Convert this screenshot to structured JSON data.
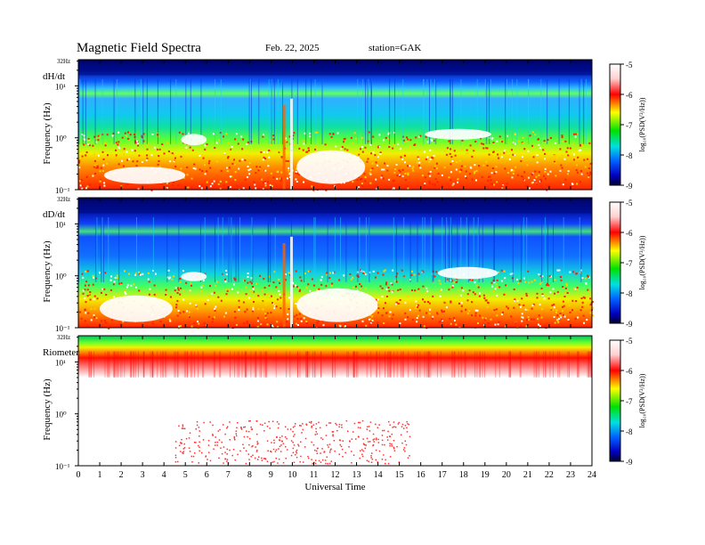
{
  "header": {
    "title": "Magnetic  Field  Spectra",
    "date": "Feb. 22, 2025",
    "station": "station=GAK"
  },
  "chart_data": [
    {
      "type": "heatmap",
      "panel_label": "dH/dt",
      "ylabel": "Frequency  (Hz)",
      "y_top_label": "32Hz",
      "y_ticks": [
        "10¹",
        "10⁰",
        "10⁻¹"
      ],
      "x_range": [
        0,
        24
      ],
      "y_range_hz": [
        0.1,
        32
      ],
      "y_scale": "log",
      "colorbar": {
        "label": "log₁₀(PSD(V²/Hz))",
        "range": [
          -9,
          -5
        ],
        "ticks": [
          "-5",
          "-6",
          "-7",
          "-8",
          "-9"
        ]
      }
    },
    {
      "type": "heatmap",
      "panel_label": "dD/dt",
      "ylabel": "Frequency  (Hz)",
      "y_top_label": "32Hz",
      "y_ticks": [
        "10¹",
        "10⁰",
        "10⁻¹"
      ],
      "x_range": [
        0,
        24
      ],
      "y_range_hz": [
        0.1,
        32
      ],
      "y_scale": "log",
      "colorbar": {
        "label": "log₁₀(PSD(V²/Hz))",
        "range": [
          -9,
          -5
        ],
        "ticks": [
          "-5",
          "-6",
          "-7",
          "-8",
          "-9"
        ]
      }
    },
    {
      "type": "heatmap",
      "panel_label": "Riometer",
      "ylabel": "Frequency  (Hz)",
      "y_top_label": "32Hz",
      "y_ticks": [
        "10¹",
        "10⁰",
        "10⁻¹"
      ],
      "x_range": [
        0,
        24
      ],
      "y_range_hz": [
        0.1,
        32
      ],
      "y_scale": "log",
      "xlabel": "Universal  Time",
      "x_ticks": [
        "0",
        "1",
        "2",
        "3",
        "4",
        "5",
        "6",
        "7",
        "8",
        "9",
        "10",
        "11",
        "12",
        "13",
        "14",
        "15",
        "16",
        "17",
        "18",
        "19",
        "20",
        "21",
        "22",
        "23",
        "24"
      ],
      "colorbar": {
        "label": "log₁₀(PSD(V²/Hz))",
        "range": [
          -9,
          -5
        ],
        "ticks": [
          "-5",
          "-6",
          "-7",
          "-8",
          "-9"
        ]
      }
    }
  ]
}
